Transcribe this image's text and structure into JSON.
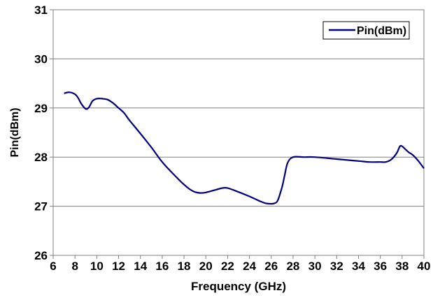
{
  "chart_data": {
    "type": "line",
    "title": "",
    "xlabel": "Frequency (GHz)",
    "ylabel": "Pin(dBm)",
    "xlim": [
      6,
      40
    ],
    "ylim": [
      26,
      31
    ],
    "x_ticks": [
      6,
      8,
      10,
      12,
      14,
      16,
      18,
      20,
      22,
      24,
      26,
      28,
      30,
      32,
      34,
      36,
      38,
      40
    ],
    "y_ticks": [
      26,
      27,
      28,
      29,
      30,
      31
    ],
    "grid": "horizontal",
    "legend_position": "top-right",
    "series": [
      {
        "name": "Pin(dBm)",
        "color": "#000080",
        "x": [
          7,
          7.5,
          8,
          8.3,
          8.6,
          9,
          9.3,
          9.6,
          10,
          10.5,
          11,
          11.5,
          12,
          12.5,
          13,
          14,
          15,
          16,
          17,
          18,
          18.5,
          19,
          19.5,
          20,
          21,
          21.5,
          22,
          23,
          24,
          25,
          25.5,
          26,
          26.3,
          26.6,
          27,
          27.2,
          27.5,
          28,
          29,
          30,
          32,
          34,
          35,
          36,
          36.5,
          37,
          37.5,
          37.8,
          38,
          38.3,
          38.6,
          39,
          39.5,
          40
        ],
        "values": [
          29.3,
          29.32,
          29.28,
          29.2,
          29.08,
          28.98,
          29.02,
          29.14,
          29.19,
          29.19,
          29.17,
          29.1,
          29.0,
          28.9,
          28.75,
          28.48,
          28.2,
          27.9,
          27.66,
          27.44,
          27.35,
          27.29,
          27.27,
          27.28,
          27.34,
          27.37,
          27.37,
          27.29,
          27.2,
          27.1,
          27.06,
          27.05,
          27.06,
          27.12,
          27.4,
          27.6,
          27.88,
          28.0,
          28.0,
          28.0,
          27.96,
          27.92,
          27.9,
          27.9,
          27.9,
          27.95,
          28.08,
          28.22,
          28.22,
          28.16,
          28.1,
          28.04,
          27.92,
          27.77
        ]
      }
    ]
  }
}
